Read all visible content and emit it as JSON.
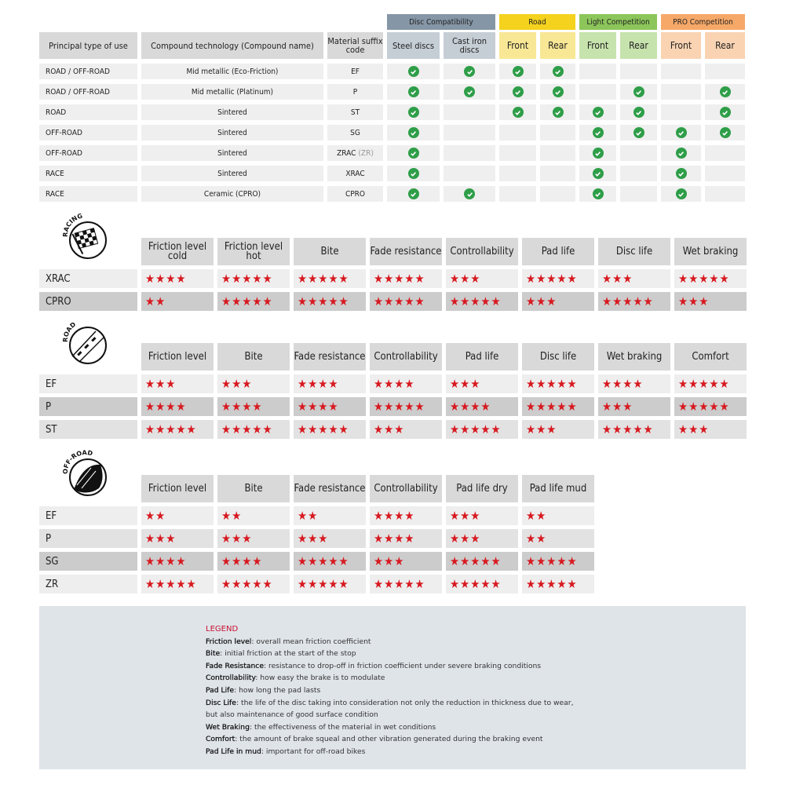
{
  "compat": {
    "groups": [
      {
        "label": "Disc Compatibility",
        "color": "#8596a6",
        "sub_color": "#c5cdd5",
        "cols": [
          "Steel discs",
          "Cast iron discs"
        ]
      },
      {
        "label": "Road",
        "color": "#f4d21e",
        "sub_color": "#f8e795",
        "cols": [
          "Front",
          "Rear"
        ]
      },
      {
        "label": "Light Competition",
        "color": "#8cc65a",
        "sub_color": "#c7e3ad",
        "cols": [
          "Front",
          "Rear"
        ]
      },
      {
        "label": "PRO Competition",
        "color": "#f6a868",
        "sub_color": "#f9d3b2",
        "cols": [
          "Front",
          "Rear"
        ]
      }
    ],
    "headers": [
      "Principal type of use",
      "Compound technology (Compound name)",
      "Material suffix code"
    ],
    "rows": [
      {
        "use": "ROAD / OFF-ROAD",
        "compound": "Mid metallic (Eco-Friction)",
        "code": "EF",
        "code_extra": "",
        "checks": [
          true,
          true,
          true,
          true,
          false,
          false,
          false,
          false
        ]
      },
      {
        "use": "ROAD / OFF-ROAD",
        "compound": "Mid metallic (Platinum)",
        "code": "P",
        "code_extra": "",
        "checks": [
          true,
          true,
          true,
          true,
          false,
          true,
          false,
          true
        ]
      },
      {
        "use": "ROAD",
        "compound": "Sintered",
        "code": "ST",
        "code_extra": "",
        "checks": [
          true,
          false,
          true,
          true,
          true,
          true,
          false,
          true
        ]
      },
      {
        "use": "OFF-ROAD",
        "compound": "Sintered",
        "code": "SG",
        "code_extra": "",
        "checks": [
          true,
          false,
          false,
          false,
          true,
          true,
          true,
          true
        ]
      },
      {
        "use": "OFF-ROAD",
        "compound": "Sintered",
        "code": "ZRAC",
        "code_extra": "(ZR)",
        "checks": [
          true,
          false,
          false,
          false,
          true,
          false,
          true,
          false
        ]
      },
      {
        "use": "RACE",
        "compound": "Sintered",
        "code": "XRAC",
        "code_extra": "",
        "checks": [
          true,
          false,
          false,
          false,
          true,
          false,
          true,
          false
        ]
      },
      {
        "use": "RACE",
        "compound": "Ceramic (CPRO)",
        "code": "CPRO",
        "code_extra": "",
        "checks": [
          true,
          true,
          false,
          false,
          true,
          false,
          true,
          false
        ]
      }
    ]
  },
  "ratings": [
    {
      "badge": "RACING",
      "icon": "checkered-flag-icon",
      "columns": [
        "Friction level cold",
        "Friction level hot",
        "Bite",
        "Fade resistance",
        "Controllability",
        "Pad life",
        "Disc life",
        "Wet braking"
      ],
      "rows": [
        {
          "code": "XRAC",
          "stars": [
            4,
            5,
            5,
            5,
            3,
            5,
            3,
            5
          ]
        },
        {
          "code": "CPRO",
          "stars": [
            2,
            5,
            5,
            5,
            5,
            3,
            5,
            3
          ]
        }
      ]
    },
    {
      "badge": "ROAD",
      "icon": "road-icon",
      "columns": [
        "Friction level",
        "Bite",
        "Fade resistance",
        "Controllability",
        "Pad life",
        "Disc life",
        "Wet braking",
        "Comfort"
      ],
      "rows": [
        {
          "code": "EF",
          "stars": [
            3,
            3,
            4,
            4,
            3,
            5,
            4,
            5
          ]
        },
        {
          "code": "P",
          "stars": [
            4,
            4,
            4,
            5,
            4,
            5,
            3,
            5
          ]
        },
        {
          "code": "ST",
          "stars": [
            5,
            5,
            5,
            3,
            5,
            3,
            5,
            3
          ]
        }
      ]
    },
    {
      "badge": "OFF-ROAD",
      "icon": "off-road-mud-icon",
      "columns": [
        "Friction level",
        "Bite",
        "Fade resistance",
        "Controllability",
        "Pad life dry",
        "Pad life mud"
      ],
      "rows": [
        {
          "code": "EF",
          "stars": [
            2,
            2,
            2,
            4,
            3,
            2
          ]
        },
        {
          "code": "P",
          "stars": [
            3,
            3,
            3,
            4,
            3,
            2
          ]
        },
        {
          "code": "SG",
          "stars": [
            4,
            4,
            5,
            3,
            5,
            5
          ]
        },
        {
          "code": "ZR",
          "stars": [
            5,
            5,
            5,
            5,
            5,
            5
          ]
        }
      ]
    }
  ],
  "legend": {
    "title": "LEGEND",
    "items": [
      {
        "term": "Friction level",
        "desc": ": overall mean friction coefficient"
      },
      {
        "term": "Bite",
        "desc": ": initial friction at the start of the stop"
      },
      {
        "term": "Fade Resistance",
        "desc": ": resistance to drop-off in friction coefficient under severe braking conditions"
      },
      {
        "term": "Controllability",
        "desc": ": how easy the brake is to modulate"
      },
      {
        "term": "Pad Life",
        "desc": ": how long the pad lasts"
      },
      {
        "term": "Disc Life",
        "desc": ": the life of the disc taking into consideration not only the reduction in thickness due to wear,"
      },
      {
        "term": "",
        "desc": "but also maintenance of good surface condition"
      },
      {
        "term": "Wet Braking",
        "desc": ": the effectiveness of the material in wet conditions"
      },
      {
        "term": "Comfort",
        "desc": ": the amount of brake squeal and other vibration generated during the braking event"
      },
      {
        "term": "Pad Life in mud",
        "desc": ": important for off-road bikes"
      }
    ]
  },
  "colors": {
    "star": "#d71920",
    "check": "#2e9e48",
    "legend_title": "#c8102e",
    "legend_bg": "#dfe4e9"
  }
}
